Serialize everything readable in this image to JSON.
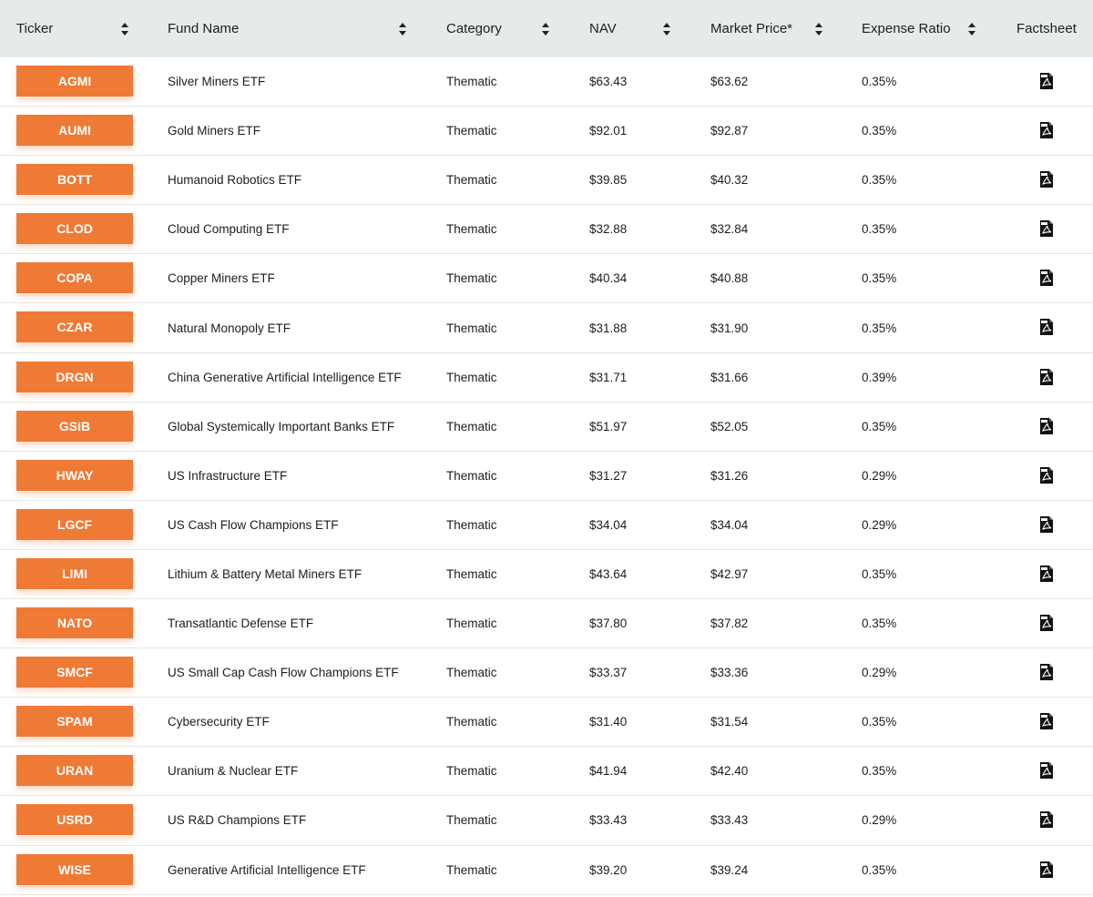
{
  "columns": {
    "ticker": "Ticker",
    "fund_name": "Fund Name",
    "category": "Category",
    "nav": "NAV",
    "market_price": "Market Price*",
    "expense_ratio": "Expense Ratio",
    "factsheet": "Factsheet"
  },
  "icons": {
    "sort": "sort-updown-icon",
    "factsheet": "pdf-file-icon"
  },
  "colors": {
    "ticker_bg": "#ef7a35",
    "header_bg": "#e7eaeb"
  },
  "rows": [
    {
      "ticker": "AGMI",
      "fund_name": "Silver Miners ETF",
      "category": "Thematic",
      "nav": "$63.43",
      "market_price": "$63.62",
      "expense_ratio": "0.35%"
    },
    {
      "ticker": "AUMI",
      "fund_name": "Gold Miners ETF",
      "category": "Thematic",
      "nav": "$92.01",
      "market_price": "$92.87",
      "expense_ratio": "0.35%"
    },
    {
      "ticker": "BOTT",
      "fund_name": "Humanoid Robotics ETF",
      "category": "Thematic",
      "nav": "$39.85",
      "market_price": "$40.32",
      "expense_ratio": "0.35%"
    },
    {
      "ticker": "CLOD",
      "fund_name": "Cloud Computing ETF",
      "category": "Thematic",
      "nav": "$32.88",
      "market_price": "$32.84",
      "expense_ratio": "0.35%"
    },
    {
      "ticker": "COPA",
      "fund_name": "Copper Miners ETF",
      "category": "Thematic",
      "nav": "$40.34",
      "market_price": "$40.88",
      "expense_ratio": "0.35%"
    },
    {
      "ticker": "CZAR",
      "fund_name": "Natural Monopoly ETF",
      "category": "Thematic",
      "nav": "$31.88",
      "market_price": "$31.90",
      "expense_ratio": "0.35%"
    },
    {
      "ticker": "DRGN",
      "fund_name": "China Generative Artificial Intelligence ETF",
      "category": "Thematic",
      "nav": "$31.71",
      "market_price": "$31.66",
      "expense_ratio": "0.39%"
    },
    {
      "ticker": "GSIB",
      "fund_name": "Global Systemically Important Banks ETF",
      "category": "Thematic",
      "nav": "$51.97",
      "market_price": "$52.05",
      "expense_ratio": "0.35%"
    },
    {
      "ticker": "HWAY",
      "fund_name": "US Infrastructure ETF",
      "category": "Thematic",
      "nav": "$31.27",
      "market_price": "$31.26",
      "expense_ratio": "0.29%"
    },
    {
      "ticker": "LGCF",
      "fund_name": "US Cash Flow Champions ETF",
      "category": "Thematic",
      "nav": "$34.04",
      "market_price": "$34.04",
      "expense_ratio": "0.29%"
    },
    {
      "ticker": "LIMI",
      "fund_name": "Lithium & Battery Metal Miners ETF",
      "category": "Thematic",
      "nav": "$43.64",
      "market_price": "$42.97",
      "expense_ratio": "0.35%"
    },
    {
      "ticker": "NATO",
      "fund_name": "Transatlantic Defense ETF",
      "category": "Thematic",
      "nav": "$37.80",
      "market_price": "$37.82",
      "expense_ratio": "0.35%"
    },
    {
      "ticker": "SMCF",
      "fund_name": "US Small Cap Cash Flow Champions ETF",
      "category": "Thematic",
      "nav": "$33.37",
      "market_price": "$33.36",
      "expense_ratio": "0.29%"
    },
    {
      "ticker": "SPAM",
      "fund_name": "Cybersecurity ETF",
      "category": "Thematic",
      "nav": "$31.40",
      "market_price": "$31.54",
      "expense_ratio": "0.35%"
    },
    {
      "ticker": "URAN",
      "fund_name": "Uranium & Nuclear ETF",
      "category": "Thematic",
      "nav": "$41.94",
      "market_price": "$42.40",
      "expense_ratio": "0.35%"
    },
    {
      "ticker": "USRD",
      "fund_name": "US R&D Champions ETF",
      "category": "Thematic",
      "nav": "$33.43",
      "market_price": "$33.43",
      "expense_ratio": "0.29%"
    },
    {
      "ticker": "WISE",
      "fund_name": "Generative Artificial Intelligence ETF",
      "category": "Thematic",
      "nav": "$39.20",
      "market_price": "$39.24",
      "expense_ratio": "0.35%"
    }
  ]
}
